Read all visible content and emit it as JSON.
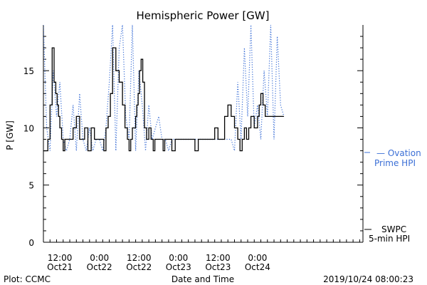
{
  "chart_data": {
    "type": "line",
    "title": "Hemispheric Power [GW]",
    "ylabel": "P [GW]",
    "xlabel": "Date and Time",
    "ylim": [
      0,
      19
    ],
    "xlim": [
      "2019-10-20T07:00",
      "2019-10-24T08:00"
    ],
    "y_ticks": [
      0,
      5,
      10,
      15
    ],
    "x_ticks": [
      {
        "at": "2019-10-20T12:00",
        "time": "12:00",
        "date": "Oct21"
      },
      {
        "at": "2019-10-21T00:00",
        "time": "0:00",
        "date": "Oct22"
      },
      {
        "at": "2019-10-21T12:00",
        "time": "12:00",
        "date": "Oct22"
      },
      {
        "at": "2019-10-22T00:00",
        "time": "0:00",
        "date": "Oct23"
      },
      {
        "at": "2019-10-22T12:00",
        "time": "12:00",
        "date": "Oct23"
      },
      {
        "at": "2019-10-23T00:00",
        "time": "0:00",
        "date": "Oct24"
      }
    ],
    "grid": false,
    "series": [
      {
        "name": "SWPC 5-min HPI",
        "color": "#000000",
        "style": "solid",
        "x": [
          "2019-10-20T07:00",
          "2019-10-20T07:40",
          "2019-10-20T08:20",
          "2019-10-20T09:00",
          "2019-10-20T09:40",
          "2019-10-20T10:15",
          "2019-10-20T10:45",
          "2019-10-20T11:10",
          "2019-10-20T11:35",
          "2019-10-20T12:00",
          "2019-10-20T12:30",
          "2019-10-20T13:00",
          "2019-10-20T13:30",
          "2019-10-20T14:00",
          "2019-10-20T14:30",
          "2019-10-20T15:00",
          "2019-10-20T16:00",
          "2019-10-20T17:00",
          "2019-10-20T18:00",
          "2019-10-20T19:30",
          "2019-10-20T20:30",
          "2019-10-20T21:30",
          "2019-10-20T22:30",
          "2019-10-20T23:30",
          "2019-10-21T00:00",
          "2019-10-21T00:40",
          "2019-10-21T01:20",
          "2019-10-21T02:00",
          "2019-10-21T02:40",
          "2019-10-21T03:20",
          "2019-10-21T04:00",
          "2019-10-21T05:00",
          "2019-10-21T06:00",
          "2019-10-21T07:00",
          "2019-10-21T07:45",
          "2019-10-21T08:30",
          "2019-10-21T09:00",
          "2019-10-21T09:30",
          "2019-10-21T10:00",
          "2019-10-21T10:30",
          "2019-10-21T11:00",
          "2019-10-21T11:20",
          "2019-10-21T11:45",
          "2019-10-21T12:10",
          "2019-10-21T12:40",
          "2019-10-21T13:10",
          "2019-10-21T13:40",
          "2019-10-21T14:20",
          "2019-10-21T15:00",
          "2019-10-21T15:40",
          "2019-10-21T16:20",
          "2019-10-21T16:50",
          "2019-10-21T17:20",
          "2019-10-21T17:50",
          "2019-10-21T18:20",
          "2019-10-21T18:50",
          "2019-10-21T19:20",
          "2019-10-21T19:50",
          "2019-10-21T20:30",
          "2019-10-21T21:10",
          "2019-10-21T22:00",
          "2019-10-21T23:00",
          "2019-10-22T00:00",
          "2019-10-22T01:00",
          "2019-10-22T02:00",
          "2019-10-22T03:00",
          "2019-10-22T04:00",
          "2019-10-22T05:00",
          "2019-10-22T06:00",
          "2019-10-22T07:00",
          "2019-10-22T08:00",
          "2019-10-22T09:00",
          "2019-10-22T10:00",
          "2019-10-22T11:00",
          "2019-10-22T12:00",
          "2019-10-22T13:00",
          "2019-10-22T14:00",
          "2019-10-22T15:00",
          "2019-10-22T16:00",
          "2019-10-22T17:00",
          "2019-10-22T18:00",
          "2019-10-22T18:40",
          "2019-10-22T19:20",
          "2019-10-22T20:00",
          "2019-10-22T20:40",
          "2019-10-22T21:20",
          "2019-10-22T22:00",
          "2019-10-22T23:00",
          "2019-10-23T00:00",
          "2019-10-23T00:30",
          "2019-10-23T01:00",
          "2019-10-23T01:40",
          "2019-10-23T02:20",
          "2019-10-23T03:00",
          "2019-10-23T03:40",
          "2019-10-23T04:20",
          "2019-10-23T05:00",
          "2019-10-23T05:40",
          "2019-10-23T06:20",
          "2019-10-23T07:00",
          "2019-10-23T07:40",
          "2019-10-23T08:00"
        ],
        "values": [
          8,
          8,
          9,
          12,
          17,
          14,
          13,
          12,
          11,
          10,
          9,
          8,
          9,
          9,
          9,
          9,
          10,
          11,
          9,
          10,
          8,
          10,
          9,
          9,
          9,
          9,
          8,
          10,
          11,
          13,
          17,
          15,
          14,
          12,
          10,
          9,
          8,
          9,
          10,
          10,
          11,
          12,
          13,
          15,
          16,
          14,
          10,
          9,
          10,
          9,
          8,
          9,
          9,
          9,
          9,
          9,
          8,
          9,
          9,
          9,
          8,
          9,
          9,
          9,
          9,
          9,
          9,
          8,
          9,
          9,
          9,
          9,
          9,
          10,
          9,
          9,
          11,
          12,
          11,
          10,
          9,
          8,
          9,
          10,
          9,
          10,
          11,
          10,
          11,
          12,
          13,
          12,
          11,
          11,
          11,
          11,
          11,
          11,
          11,
          11,
          11,
          11
        ]
      },
      {
        "name": "Ovation Prime HPI",
        "color": "#3b6fd6",
        "style": "dotted",
        "x": [
          "2019-10-20T07:00",
          "2019-10-20T08:00",
          "2019-10-20T09:00",
          "2019-10-20T10:00",
          "2019-10-20T11:00",
          "2019-10-20T12:00",
          "2019-10-20T13:00",
          "2019-10-20T14:00",
          "2019-10-20T15:00",
          "2019-10-20T16:00",
          "2019-10-20T17:00",
          "2019-10-20T18:00",
          "2019-10-20T19:00",
          "2019-10-20T20:00",
          "2019-10-20T21:00",
          "2019-10-20T22:00",
          "2019-10-20T23:00",
          "2019-10-21T00:00",
          "2019-10-21T01:00",
          "2019-10-21T02:00",
          "2019-10-21T03:00",
          "2019-10-21T04:00",
          "2019-10-21T05:00",
          "2019-10-21T06:00",
          "2019-10-21T07:00",
          "2019-10-21T08:00",
          "2019-10-21T09:00",
          "2019-10-21T10:00",
          "2019-10-21T11:00",
          "2019-10-21T12:00",
          "2019-10-21T13:00",
          "2019-10-21T14:00",
          "2019-10-21T15:00",
          "2019-10-21T16:00",
          "2019-10-21T17:00",
          "2019-10-21T18:00",
          "2019-10-21T19:00",
          "2019-10-21T20:00",
          "2019-10-21T21:00",
          "2019-10-21T22:00",
          "2019-10-21T23:00",
          "2019-10-22T00:00",
          "2019-10-22T02:00",
          "2019-10-22T04:00",
          "2019-10-22T06:00",
          "2019-10-22T08:00",
          "2019-10-22T10:00",
          "2019-10-22T12:00",
          "2019-10-22T14:00",
          "2019-10-22T15:00",
          "2019-10-22T16:00",
          "2019-10-22T17:00",
          "2019-10-22T18:00",
          "2019-10-22T19:00",
          "2019-10-22T20:00",
          "2019-10-22T21:00",
          "2019-10-22T22:00",
          "2019-10-22T23:00",
          "2019-10-23T00:00",
          "2019-10-23T01:00",
          "2019-10-23T02:00",
          "2019-10-23T03:00",
          "2019-10-23T04:00",
          "2019-10-23T05:00",
          "2019-10-23T06:00",
          "2019-10-23T07:00",
          "2019-10-23T08:00"
        ],
        "values": [
          19,
          10,
          8,
          15,
          11,
          14,
          9,
          8,
          9,
          12,
          8,
          13,
          9,
          8,
          10,
          8,
          9,
          9,
          8,
          10,
          14,
          19,
          8,
          17,
          19,
          11,
          9,
          19,
          8,
          15,
          12,
          8,
          12,
          9,
          10,
          11,
          9,
          9,
          8,
          9,
          9,
          9,
          9,
          9,
          9,
          9,
          9,
          9,
          9,
          9,
          9,
          8,
          14,
          9,
          17,
          11,
          19,
          10,
          12,
          9,
          15,
          11,
          19,
          9,
          18,
          12,
          11
        ]
      }
    ]
  },
  "legend": {
    "ovation_prefix": "— Ovation",
    "ovation_suffix": "Prime HPI",
    "swpc_line1": "SWPC",
    "swpc_line2": "5-min HPI"
  },
  "footer": {
    "plot_credit": "Plot: CCMC",
    "timestamp": "2019/10/24 08:00:23"
  }
}
